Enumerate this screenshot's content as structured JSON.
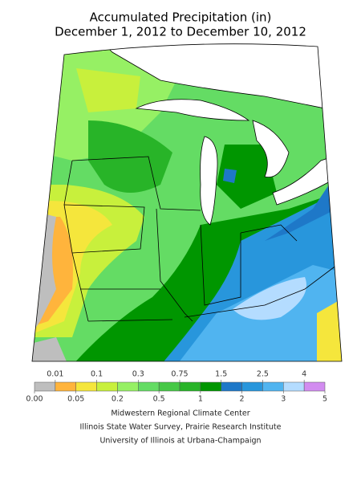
{
  "header": {
    "title": [
      "Accumulated Precipitation (in)",
      "December 1, 2012 to December 10, 2012"
    ]
  },
  "legend": {
    "breaks": [
      {
        "value": 0,
        "label": "0.00"
      },
      0.01,
      0.05,
      0.1,
      0.2,
      0.3,
      0.5,
      0.75,
      1,
      1.5,
      2,
      2.5,
      3,
      4,
      5
    ],
    "colors": [
      "#bebebe",
      "#ffb43c",
      "#f5e63c",
      "#c8f03c",
      "#96f064",
      "#64dc64",
      "#46c846",
      "#28b428",
      "#009600",
      "#1e78c8",
      "#2896dc",
      "#50b4f0",
      "#b4dcff",
      "#d28cf0"
    ]
  },
  "credits": [
    "Midwestern Regional Climate Center",
    "Illinois State Water Survey, Prairie Research Institute",
    "University of Illinois at Urbana-Champaign"
  ]
}
